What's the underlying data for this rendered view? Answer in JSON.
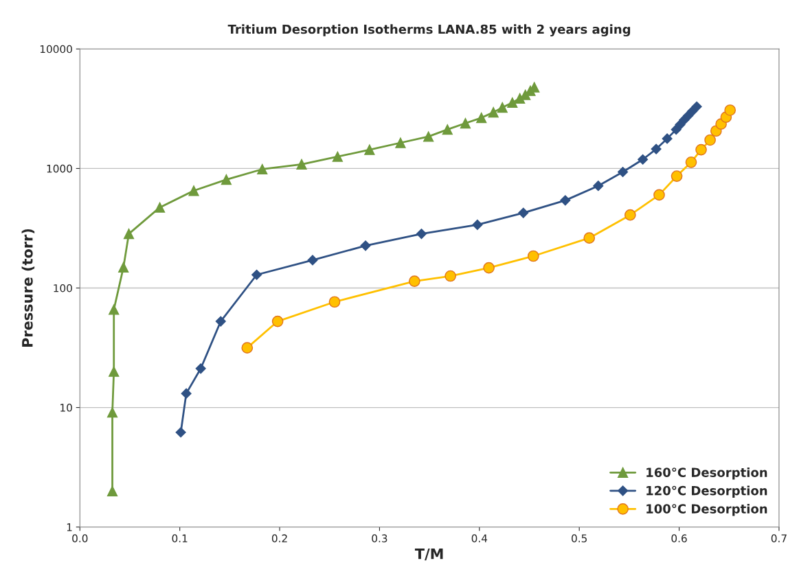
{
  "chart_data": {
    "type": "line",
    "title": "Tritium Desorption Isotherms LANA.85 with 2 years aging",
    "xlabel": "T/M",
    "ylabel": "Pressure (torr)",
    "log": "y",
    "grid": "y",
    "legend": "bottom right",
    "xlim": [
      0,
      0.7
    ],
    "xticks": [
      {
        "value": 0,
        "label": "0.0"
      },
      0.1,
      0.2,
      0.3,
      0.4,
      0.5,
      0.6,
      0.7
    ],
    "ylim": [
      1,
      10000
    ],
    "yticks": [
      1,
      10,
      100,
      1000,
      10000
    ],
    "series": [
      {
        "name": "160°C Desorption",
        "color": "#6f9a3c",
        "marker": "triangle",
        "x": [
          0.0325,
          0.0325,
          0.034,
          0.034,
          0.0436,
          0.049,
          0.08,
          0.114,
          0.1466,
          0.1826,
          0.222,
          0.258,
          0.29,
          0.321,
          0.349,
          0.368,
          0.386,
          0.402,
          0.414,
          0.423,
          0.433,
          0.4405,
          0.446,
          0.451,
          0.455
        ],
        "values": [
          2,
          9.1,
          20,
          66,
          149,
          284,
          472,
          652,
          807,
          986,
          1084,
          1256,
          1435,
          1640,
          1850,
          2118,
          2390,
          2655,
          2950,
          3240,
          3560,
          3860,
          4130,
          4470,
          4780
        ]
      },
      {
        "name": "120°C Desorption",
        "color": "#2f5184",
        "marker": "diamond",
        "x": [
          0.101,
          0.1065,
          0.121,
          0.141,
          0.177,
          0.233,
          0.286,
          0.342,
          0.398,
          0.444,
          0.486,
          0.519,
          0.5436,
          0.5636,
          0.577,
          0.588,
          0.597,
          0.601,
          0.605,
          0.609,
          0.613,
          0.6176
        ],
        "values": [
          6.2,
          13.1,
          21.2,
          52.6,
          129,
          171,
          226,
          284,
          338,
          425,
          541,
          716,
          935,
          1190,
          1455,
          1778,
          2118,
          2325,
          2550,
          2765,
          3000,
          3290
        ]
      },
      {
        "name": "100°C Desorption",
        "color": "#ffc000",
        "marker": "circle",
        "x": [
          0.1675,
          0.198,
          0.255,
          0.335,
          0.371,
          0.4095,
          0.454,
          0.51,
          0.551,
          0.58,
          0.5976,
          0.612,
          0.622,
          0.631,
          0.637,
          0.642,
          0.647,
          0.651
        ],
        "values": [
          31.6,
          52.6,
          76.5,
          114,
          126,
          147.5,
          185,
          262,
          408,
          601,
          863,
          1128,
          1435,
          1730,
          2060,
          2355,
          2690,
          3075
        ]
      }
    ]
  }
}
